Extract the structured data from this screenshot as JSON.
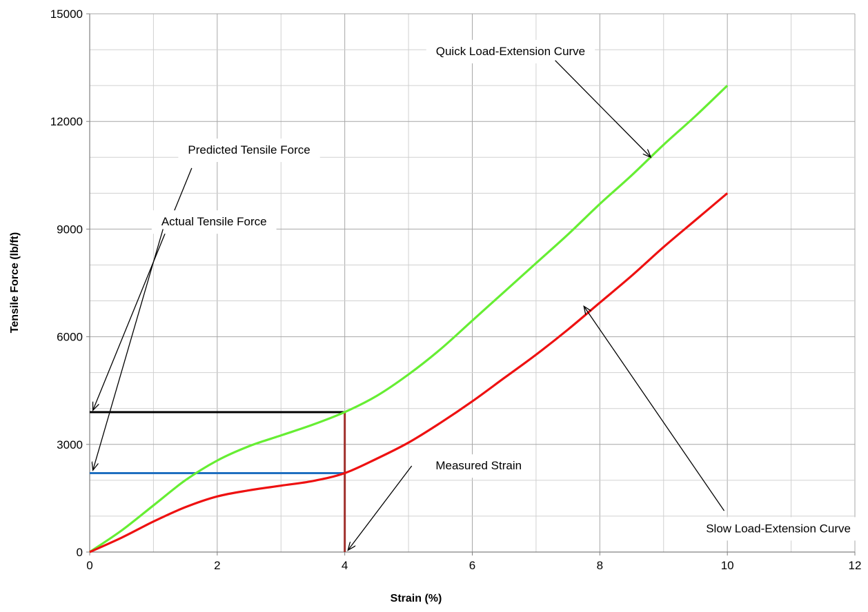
{
  "chart_data": {
    "type": "line",
    "title": "",
    "xlabel": "Strain (%)",
    "ylabel": "Tensile Force  (lb/ft)",
    "xlim": [
      0,
      12
    ],
    "ylim": [
      0,
      15000
    ],
    "x_ticks": [
      0,
      2,
      4,
      6,
      8,
      10,
      12
    ],
    "y_ticks": [
      0,
      3000,
      6000,
      9000,
      12000,
      15000
    ],
    "x_minor_step": 1,
    "y_minor_step": 1000,
    "grid": true,
    "legend": "none",
    "series": [
      {
        "color": "#66ee33",
        "points": [
          [
            0,
            0
          ],
          [
            0.5,
            600
          ],
          [
            1,
            1300
          ],
          [
            1.5,
            2000
          ],
          [
            2,
            2550
          ],
          [
            2.5,
            2950
          ],
          [
            3,
            3250
          ],
          [
            3.5,
            3550
          ],
          [
            4,
            3900
          ],
          [
            4.5,
            4350
          ],
          [
            5,
            4950
          ],
          [
            5.5,
            5650
          ],
          [
            6,
            6450
          ],
          [
            6.5,
            7250
          ],
          [
            7,
            8050
          ],
          [
            7.5,
            8850
          ],
          [
            8,
            9700
          ],
          [
            8.5,
            10500
          ],
          [
            9,
            11350
          ],
          [
            9.5,
            12150
          ],
          [
            10,
            13000
          ]
        ]
      },
      {
        "color": "#ee1111",
        "points": [
          [
            0,
            0
          ],
          [
            0.5,
            400
          ],
          [
            1,
            850
          ],
          [
            1.5,
            1250
          ],
          [
            2,
            1550
          ],
          [
            2.5,
            1720
          ],
          [
            3,
            1850
          ],
          [
            3.5,
            1980
          ],
          [
            4,
            2200
          ],
          [
            4.5,
            2600
          ],
          [
            5,
            3050
          ],
          [
            5.5,
            3600
          ],
          [
            6,
            4200
          ],
          [
            6.5,
            4850
          ],
          [
            7,
            5500
          ],
          [
            7.5,
            6200
          ],
          [
            8,
            6950
          ],
          [
            8.5,
            7700
          ],
          [
            9,
            8500
          ],
          [
            9.5,
            9250
          ],
          [
            10,
            10000
          ]
        ]
      }
    ],
    "reference_lines": [
      {
        "color": "#000000",
        "from": [
          0,
          3900
        ],
        "to": [
          4,
          3900
        ]
      },
      {
        "color": "#1f6fc0",
        "from": [
          0,
          2200
        ],
        "to": [
          4,
          2200
        ]
      },
      {
        "color": "#a0302c",
        "from": [
          4,
          0
        ],
        "to": [
          4,
          3900
        ]
      }
    ],
    "annotations": [
      {
        "text": "Quick Load-Extension Curve",
        "label_at": [
          6.6,
          13850
        ],
        "arrow_from": [
          7.3,
          13700
        ],
        "arrow_to": [
          8.8,
          11000
        ]
      },
      {
        "text": "Predicted Tensile Force",
        "label_at": [
          2.5,
          11100
        ],
        "arrow_from": [
          1.6,
          10700
        ],
        "arrow_to": [
          0.05,
          3950
        ]
      },
      {
        "text": "Actual Tensile Force",
        "label_at": [
          1.95,
          9100
        ],
        "arrow_from": [
          1.15,
          9000
        ],
        "arrow_to": [
          0.05,
          2280
        ]
      },
      {
        "text": "Measured Strain",
        "label_at": [
          6.1,
          2300
        ],
        "arrow_from": [
          5.05,
          2400
        ],
        "arrow_to": [
          4.05,
          50
        ]
      },
      {
        "text": "Slow Load-Extension Curve",
        "label_at": [
          10.8,
          550
        ],
        "arrow_from": [
          9.95,
          1150
        ],
        "arrow_to": [
          7.75,
          6850
        ]
      }
    ]
  }
}
